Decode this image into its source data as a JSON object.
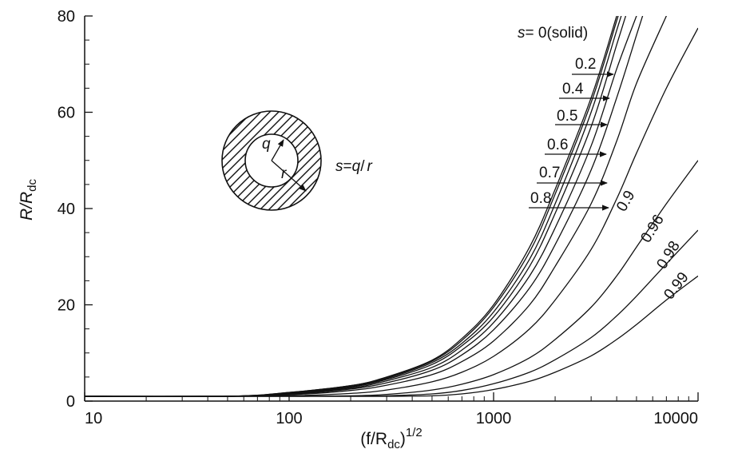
{
  "chart_data": {
    "type": "line",
    "title": "",
    "xlabel": {
      "base": "(f/R",
      "sub": "dc",
      "close": ")",
      "sup": "1/2"
    },
    "ylabel": {
      "base": "R/R",
      "sub": "dc"
    },
    "xscale": "log",
    "xlim": [
      10,
      10000
    ],
    "ylim": [
      0,
      80
    ],
    "xticks": [
      10,
      100,
      1000,
      10000
    ],
    "xtick_labels": [
      "10",
      "100",
      "1000",
      "10000"
    ],
    "yticks": [
      0,
      20,
      40,
      60,
      80
    ],
    "ytick_labels": [
      "0",
      "20",
      "40",
      "60",
      "80"
    ],
    "grid": false,
    "legend": "inline curve labels",
    "x": [
      10,
      50,
      100,
      200,
      300,
      500,
      700,
      1000,
      1500,
      2000,
      3000,
      4000,
      5000,
      7000,
      10000
    ],
    "series": [
      {
        "name": "s=0(solid)",
        "values": [
          1.0,
          1.0,
          1.8,
          3.2,
          5.0,
          8.5,
          13.0,
          20.0,
          32.0,
          44.0,
          63.0,
          80.0,
          null,
          null,
          null
        ]
      },
      {
        "name": "0.2",
        "values": [
          1.0,
          1.0,
          1.8,
          3.2,
          4.9,
          8.3,
          12.6,
          19.5,
          31.0,
          43.0,
          62.0,
          79.0,
          null,
          null,
          null
        ]
      },
      {
        "name": "0.4",
        "values": [
          1.0,
          1.0,
          1.7,
          3.0,
          4.7,
          8.0,
          12.0,
          18.5,
          29.5,
          41.0,
          60.0,
          77.0,
          null,
          null,
          null
        ]
      },
      {
        "name": "0.5",
        "values": [
          1.0,
          1.0,
          1.6,
          2.9,
          4.5,
          7.6,
          11.5,
          17.5,
          28.0,
          39.0,
          57.0,
          74.0,
          null,
          null,
          null
        ]
      },
      {
        "name": "0.6",
        "values": [
          1.0,
          1.0,
          1.5,
          2.7,
          4.2,
          7.0,
          10.6,
          16.3,
          26.0,
          36.0,
          53.0,
          69.0,
          80.0,
          null,
          null
        ]
      },
      {
        "name": "0.7",
        "values": [
          1.0,
          1.0,
          1.4,
          2.5,
          3.8,
          6.4,
          9.6,
          14.8,
          23.5,
          32.5,
          48.0,
          63.0,
          76.0,
          null,
          null
        ]
      },
      {
        "name": "0.8",
        "values": [
          1.0,
          1.0,
          1.3,
          2.2,
          3.3,
          5.5,
          8.2,
          12.5,
          20.0,
          28.0,
          41.0,
          54.0,
          66.0,
          80.0,
          null
        ]
      },
      {
        "name": "0.9",
        "values": [
          1.0,
          1.0,
          1.1,
          1.6,
          2.3,
          4.0,
          6.0,
          9.3,
          15.0,
          21.0,
          31.5,
          42.0,
          51.5,
          65.0,
          77.5
        ]
      },
      {
        "name": "0.96",
        "values": [
          1.0,
          1.0,
          1.0,
          1.1,
          1.4,
          2.3,
          3.5,
          5.5,
          9.0,
          12.8,
          19.5,
          26.0,
          32.0,
          41.0,
          50.0
        ]
      },
      {
        "name": "0.98",
        "values": [
          1.0,
          1.0,
          1.0,
          1.0,
          1.1,
          1.5,
          2.2,
          3.6,
          6.0,
          8.6,
          13.2,
          17.7,
          21.8,
          28.5,
          35.5
        ]
      },
      {
        "name": "0.99",
        "values": [
          1.0,
          1.0,
          1.0,
          1.0,
          1.0,
          1.1,
          1.5,
          2.4,
          4.1,
          6.0,
          9.4,
          12.8,
          15.9,
          21.0,
          26.0
        ]
      }
    ],
    "curve_labels": [
      {
        "text": "s",
        "rest": "= 0(solid)"
      },
      {
        "text": "0.2"
      },
      {
        "text": "0.4"
      },
      {
        "text": "0.5"
      },
      {
        "text": "0.6"
      },
      {
        "text": "0.7"
      },
      {
        "text": "0.8"
      },
      {
        "text": "0.9"
      },
      {
        "text": "0.96"
      },
      {
        "text": "0.98"
      },
      {
        "text": "0.99"
      }
    ]
  },
  "inset": {
    "inner_label": "q",
    "outer_label": "r",
    "formula": {
      "s": "s",
      "eq": "=",
      "q": "q",
      "slash": "/",
      "r": "r"
    }
  }
}
